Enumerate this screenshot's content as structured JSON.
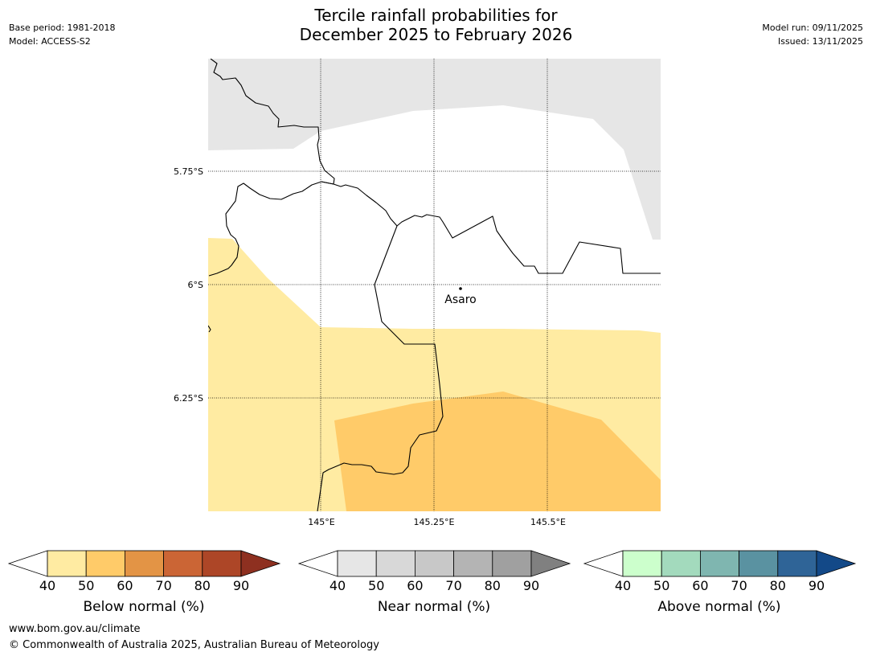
{
  "title": {
    "line1": "Tercile rainfall probabilities for",
    "line2": "December 2025 to February 2026"
  },
  "meta": {
    "base_period": "Base period: 1981-2018",
    "model": "Model: ACCESS-S2",
    "model_run": "Model run: 09/11/2025",
    "issued": "Issued: 13/11/2025"
  },
  "map": {
    "lat_labels": [
      "5.75°S",
      "6°S",
      "6.25°S"
    ],
    "lon_labels": [
      "145°E",
      "145.25°E",
      "145.5°E"
    ],
    "place": "Asaro",
    "colors": {
      "no_data_grey": "#e6e6e6",
      "below_40_50": "#ffeba2",
      "below_50_60": "#ffcb69",
      "border": "#000000",
      "gridline": "#000000"
    }
  },
  "colorbars": [
    {
      "label": "Below normal (%)",
      "ticks": [
        "40",
        "50",
        "60",
        "70",
        "80",
        "90"
      ],
      "colors": [
        "#ffeba2",
        "#ffcb69",
        "#e39445",
        "#cb6535",
        "#ad4627",
        "#8e3020"
      ]
    },
    {
      "label": "Near normal (%)",
      "ticks": [
        "40",
        "50",
        "60",
        "70",
        "80",
        "90"
      ],
      "colors": [
        "#e6e6e6",
        "#d8d8d8",
        "#c8c8c8",
        "#b4b4b4",
        "#a0a0a0",
        "#808080"
      ]
    },
    {
      "label": "Above normal (%)",
      "ticks": [
        "40",
        "50",
        "60",
        "70",
        "80",
        "90"
      ],
      "colors": [
        "#ccffcc",
        "#a3dabd",
        "#7fb6b0",
        "#5a92a1",
        "#2f6497",
        "#134988"
      ]
    }
  ],
  "footer": {
    "url": "www.bom.gov.au/climate",
    "copyright": "© Commonwealth of Australia 2025, Australian Bureau of Meteorology"
  }
}
